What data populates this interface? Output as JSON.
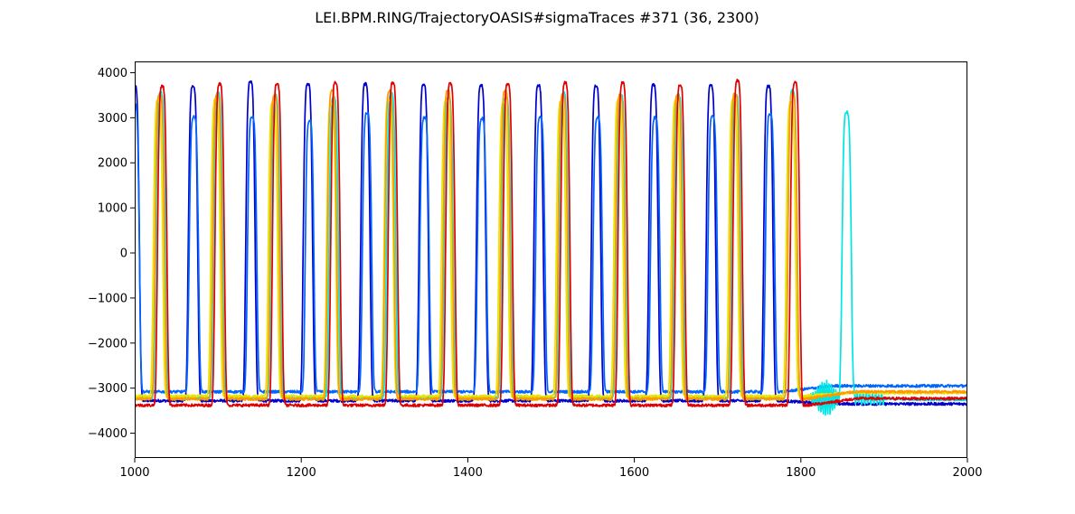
{
  "chart_data": {
    "type": "line",
    "title": "LEI.BPM.RING/TrajectoryOASIS#sigmaTraces #371 (36, 2300)",
    "xlabel": "",
    "ylabel": "",
    "xlim": [
      1000,
      2000
    ],
    "ylim": [
      -4550,
      4250
    ],
    "x_ticks": [
      1000,
      1200,
      1400,
      1600,
      1800,
      2000
    ],
    "x_tick_labels": [
      "1000",
      "1200",
      "1400",
      "1600",
      "1800",
      "2000"
    ],
    "y_ticks": [
      4000,
      3000,
      2000,
      1000,
      0,
      -1000,
      -2000,
      -3000,
      -4000
    ],
    "y_tick_labels": [
      "4000",
      "3000",
      "2000",
      "1000",
      "0",
      "−1000",
      "−2000",
      "−3000",
      "−4000"
    ],
    "grid": false,
    "legend": "none",
    "series": [
      {
        "color": "#0000cc",
        "baseline": -3280,
        "peaks": [
          [
            1000,
            3700
          ],
          [
            1070,
            3700
          ],
          [
            1139,
            3800
          ],
          [
            1208,
            3750
          ],
          [
            1277,
            3750
          ],
          [
            1347,
            3720
          ],
          [
            1416,
            3720
          ],
          [
            1485,
            3720
          ],
          [
            1554,
            3700
          ],
          [
            1623,
            3730
          ],
          [
            1692,
            3720
          ],
          [
            1761,
            3700
          ]
        ],
        "end_value": -3350
      },
      {
        "color": "#0066ff",
        "baseline": -3080,
        "peaks": [
          [
            1000,
            3300
          ],
          [
            1071,
            3020
          ],
          [
            1141,
            3020
          ],
          [
            1210,
            2920
          ],
          [
            1279,
            3100
          ],
          [
            1348,
            3000
          ],
          [
            1417,
            2980
          ],
          [
            1487,
            3000
          ],
          [
            1556,
            3000
          ],
          [
            1625,
            3000
          ],
          [
            1694,
            3030
          ],
          [
            1763,
            3080
          ]
        ],
        "end_value": -2950
      },
      {
        "color": "#00e5e5",
        "baseline": -3220,
        "peaks": [
          [
            1031,
            3550
          ],
          [
            1100,
            3550
          ],
          [
            1169,
            3500
          ],
          [
            1239,
            3450
          ],
          [
            1308,
            3550
          ],
          [
            1377,
            3450
          ],
          [
            1446,
            3450
          ],
          [
            1515,
            3550
          ],
          [
            1584,
            3500
          ],
          [
            1653,
            3500
          ],
          [
            1722,
            3500
          ],
          [
            1790,
            3600
          ],
          [
            1855,
            3120
          ]
        ],
        "end_value": -3250
      },
      {
        "color": "#e5e500",
        "baseline": -3180,
        "peaks": [
          [
            1028,
            3400
          ],
          [
            1097,
            3400
          ],
          [
            1166,
            3350
          ],
          [
            1236,
            3300
          ],
          [
            1305,
            3400
          ],
          [
            1374,
            3400
          ],
          [
            1443,
            3350
          ],
          [
            1512,
            3350
          ],
          [
            1581,
            3400
          ],
          [
            1650,
            3400
          ],
          [
            1719,
            3400
          ],
          [
            1788,
            3350
          ]
        ],
        "end_value": -3100
      },
      {
        "color": "#ff9900",
        "baseline": -3240,
        "peaks": [
          [
            1030,
            3500
          ],
          [
            1099,
            3500
          ],
          [
            1168,
            3500
          ],
          [
            1237,
            3600
          ],
          [
            1306,
            3600
          ],
          [
            1376,
            3600
          ],
          [
            1445,
            3600
          ],
          [
            1514,
            3500
          ],
          [
            1583,
            3500
          ],
          [
            1652,
            3500
          ],
          [
            1721,
            3550
          ],
          [
            1790,
            3550
          ]
        ],
        "end_value": -3080
      },
      {
        "color": "#e00000",
        "baseline": -3380,
        "peaks": [
          [
            1033,
            3700
          ],
          [
            1102,
            3750
          ],
          [
            1171,
            3750
          ],
          [
            1241,
            3780
          ],
          [
            1310,
            3780
          ],
          [
            1379,
            3750
          ],
          [
            1448,
            3750
          ],
          [
            1517,
            3780
          ],
          [
            1586,
            3780
          ],
          [
            1655,
            3720
          ],
          [
            1724,
            3830
          ],
          [
            1793,
            3780
          ]
        ],
        "end_value": -3230
      }
    ]
  }
}
